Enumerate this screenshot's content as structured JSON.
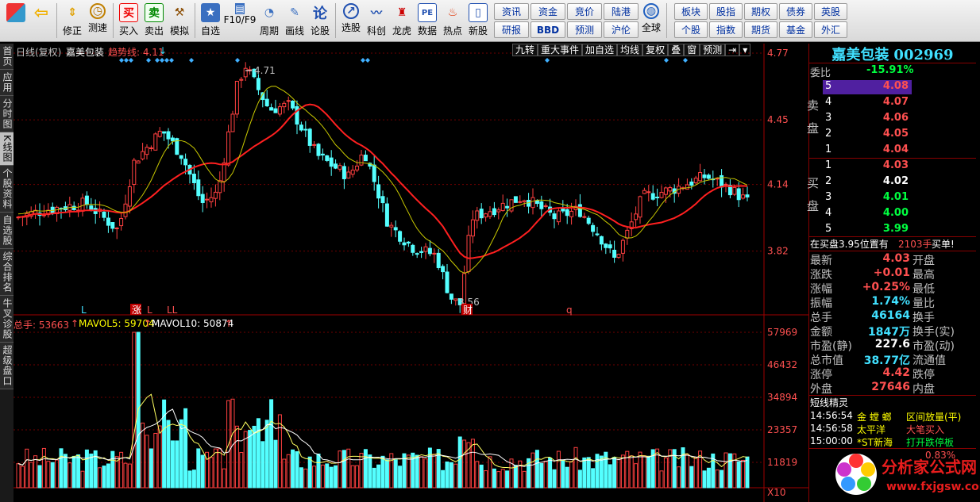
{
  "toolbar": {
    "buttons": [
      {
        "label": "",
        "name": "menu-button",
        "icon": "grid-icon"
      },
      {
        "label": "",
        "name": "back-button",
        "icon": "arrow-left-icon"
      },
      {
        "label": "修正",
        "name": "fix-button",
        "icon": "updown-icon"
      },
      {
        "label": "测速",
        "name": "speedtest-button",
        "icon": "clock-icon"
      },
      {
        "label": "买入",
        "name": "buy-button",
        "icon": "buy-icon",
        "glyph": "买"
      },
      {
        "label": "卖出",
        "name": "sell-button",
        "icon": "sell-icon",
        "glyph": "卖"
      },
      {
        "label": "模拟",
        "name": "simulate-button",
        "icon": "hammer-icon"
      },
      {
        "label": "自选",
        "name": "favorites-button",
        "icon": "star-icon"
      },
      {
        "label": "F10/F9",
        "name": "f10-button",
        "icon": "document-icon"
      },
      {
        "label": "周期",
        "name": "period-button",
        "icon": "period-icon"
      },
      {
        "label": "画线",
        "name": "draw-button",
        "icon": "pencil-icon"
      },
      {
        "label": "论股",
        "name": "discuss-button",
        "icon": "discuss-icon",
        "glyph": "论"
      },
      {
        "label": "选股",
        "name": "pick-stock-button",
        "icon": "magnifier-chart-icon"
      },
      {
        "label": "科创",
        "name": "star-market-button",
        "icon": "kechuang-icon"
      },
      {
        "label": "龙虎",
        "name": "dragon-tiger-button",
        "icon": "dragon-icon"
      },
      {
        "label": "数据",
        "name": "data-button",
        "icon": "pe-icon",
        "glyph": "PE"
      },
      {
        "label": "热点",
        "name": "hotspot-button",
        "icon": "fire-icon"
      },
      {
        "label": "新股",
        "name": "new-stock-button",
        "icon": "ipo-icon"
      },
      {
        "label": "全球",
        "name": "global-button",
        "icon": "globe-icon"
      }
    ],
    "grid_left": [
      "资讯",
      "资金",
      "竞价",
      "陆港",
      "研报",
      "BBD",
      "预测",
      "沪伦"
    ],
    "grid_right": [
      "板块",
      "股指",
      "期权",
      "债券",
      "英股",
      "个股",
      "指数",
      "期货",
      "基金",
      "外汇"
    ]
  },
  "leftbar": {
    "tabs": [
      "首页",
      "应用",
      "分时图",
      "K线图",
      "个股资料",
      "自选股",
      "综合排名",
      "牛叉诊股",
      "超级盘口"
    ]
  },
  "chart": {
    "header": {
      "mode": "日线(复权)",
      "stock_name": "嘉美包装",
      "trend_label": "趋势线: 4.11",
      "trend_arrow": "↓"
    },
    "top_buttons": [
      "九转",
      "重大事件",
      "加自选",
      "均线",
      "复权",
      "叠",
      "窗",
      "预测"
    ],
    "price_axis": [
      "4.77",
      "4.45",
      "4.14",
      "3.82"
    ],
    "vol_axis": [
      "57969",
      "46432",
      "34894",
      "23357",
      "11819",
      "X10"
    ],
    "high_label": "4.71",
    "low_label": "3.56",
    "markers": [
      {
        "t": "L",
        "c": "#40e0ff",
        "x": 85
      },
      {
        "t": "涨",
        "c": "#fff",
        "x": 149,
        "bg": "#c00000"
      },
      {
        "t": "L",
        "c": "#ff5050",
        "x": 168
      },
      {
        "t": "LL",
        "c": "#ff5050",
        "x": 193
      },
      {
        "t": "财",
        "c": "#fff",
        "x": 566,
        "bg": "#c00000"
      },
      {
        "t": "q",
        "c": "#ff5050",
        "x": 696
      }
    ],
    "vol_legend": {
      "total": "总手: 53663",
      "total_arrow": "↑",
      "ma5": "MAVOL5: 59704",
      "ma5_arrow": "↑",
      "ma10": "MAVOL10: 50874",
      "ma10_arrow": "↑"
    }
  },
  "chart_data": {
    "type": "candlestick",
    "price_range": [
      3.56,
      4.77
    ],
    "volume_range": [
      0,
      57969
    ],
    "price_high": 4.71,
    "price_low": 3.56,
    "last_close": 4.03
  },
  "side": {
    "title": "嘉美包装",
    "code": "002969",
    "weibi_label": "委比",
    "weibi_value": "-15.91%",
    "sell_label": "卖盘",
    "buy_label": "买盘",
    "asks": [
      {
        "n": "5",
        "p": "4.08"
      },
      {
        "n": "4",
        "p": "4.07"
      },
      {
        "n": "3",
        "p": "4.06"
      },
      {
        "n": "2",
        "p": "4.05"
      },
      {
        "n": "1",
        "p": "4.04"
      }
    ],
    "bids": [
      {
        "n": "1",
        "p": "4.03"
      },
      {
        "n": "2",
        "p": "4.02"
      },
      {
        "n": "3",
        "p": "4.01"
      },
      {
        "n": "4",
        "p": "4.00"
      },
      {
        "n": "5",
        "p": "3.99"
      }
    ],
    "note_left": "在买盘3.95位置有",
    "note_qty": "2103手",
    "note_right": "买单!",
    "stats": [
      {
        "l": "最新",
        "v": "4.03",
        "vc": "#ff5050",
        "r": "开盘"
      },
      {
        "l": "涨跌",
        "v": "+0.01",
        "vc": "#ff5050",
        "r": "最高"
      },
      {
        "l": "涨幅",
        "v": "+0.25%",
        "vc": "#ff5050",
        "r": "最低"
      },
      {
        "l": "振幅",
        "v": "1.74%",
        "vc": "#40e0ff",
        "r": "量比"
      },
      {
        "l": "总手",
        "v": "46164",
        "vc": "#40e0ff",
        "r": "换手"
      },
      {
        "l": "金额",
        "v": "1847万",
        "vc": "#40e0ff",
        "r": "换手(实)"
      },
      {
        "l": "市盈(静)",
        "v": "227.6",
        "vc": "#fff",
        "r": "市盈(动)"
      },
      {
        "l": "总市值",
        "v": "38.77亿",
        "vc": "#40e0ff",
        "r": "流通值"
      },
      {
        "l": "涨停",
        "v": "4.42",
        "vc": "#ff5050",
        "r": "跌停"
      },
      {
        "l": "外盘",
        "v": "27646",
        "vc": "#ff5050",
        "r": "内盘"
      }
    ],
    "spirit_title": "短线精灵",
    "spirit": [
      {
        "t": "14:56:54",
        "n": "金 螳 螂",
        "s": "区间放量(平)",
        "c": "#ffff00"
      },
      {
        "t": "14:56:58",
        "n": "太平洋",
        "s": "大笔买入",
        "c": "#ff5050"
      },
      {
        "t": "15:00:00",
        "n": "*ST新海",
        "s": "打开跌停板",
        "c": "#00ff40"
      }
    ],
    "bottom_partial": "0.83%",
    "watermark_title": "分析家公式网",
    "watermark_url": "www.fxjgsw.com"
  }
}
